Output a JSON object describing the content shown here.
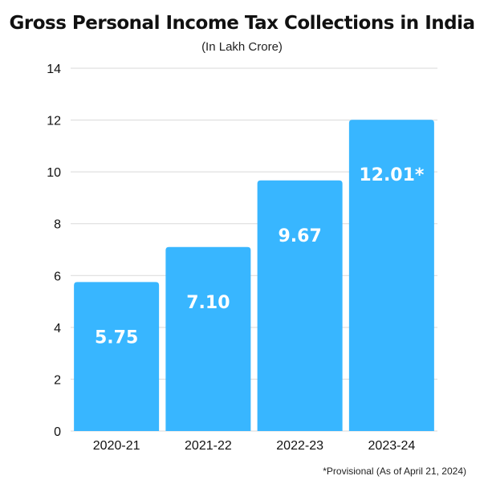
{
  "chart_data": {
    "type": "bar",
    "title": "Gross Personal Income Tax Collections in India",
    "subtitle": "(In Lakh Crore)",
    "categories": [
      "2020-21",
      "2021-22",
      "2022-23",
      "2023-24"
    ],
    "values": [
      5.75,
      7.1,
      9.67,
      12.01
    ],
    "data_labels": [
      "5.75",
      "7.10",
      "9.67",
      "12.01*"
    ],
    "ylim": [
      0,
      14
    ],
    "yticks": [
      0,
      2,
      4,
      6,
      8,
      10,
      12,
      14
    ],
    "grid": true,
    "bar_color": "#38b6ff",
    "label_color": "#ffffff",
    "xlabel": "",
    "ylabel": "",
    "footnote": "*Provisional (As of April 21, 2024)"
  }
}
